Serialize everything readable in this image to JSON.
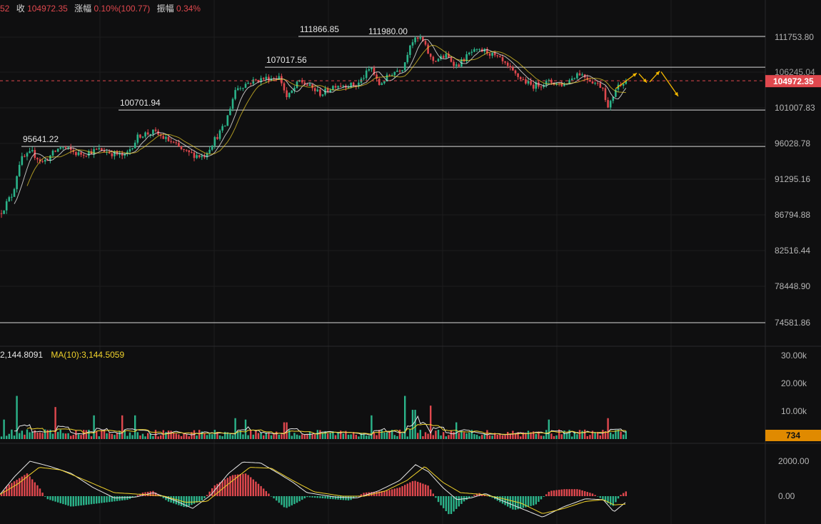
{
  "header": {
    "prefix_fragment": "52",
    "close_label": "收",
    "close_value": "104972.35",
    "change_label": "涨幅",
    "change_value": "0.10%(100.77)",
    "amplitude_label": "振幅",
    "amplitude_value": "0.34%"
  },
  "volume_header": {
    "ma5_fragment": "2,144.8091",
    "ma10_label": "MA(10):3,144.5059"
  },
  "colors": {
    "background": "#0f0f10",
    "up": "#2bb48a",
    "down": "#e0484e",
    "ma_yellow": "#f0d22b",
    "ma_white": "#e6e6e6",
    "arrow": "#f5b800",
    "current_price_badge": "#e0484e",
    "volume_badge": "#e08a00"
  },
  "chart_data": [
    {
      "type": "candlestick",
      "price_axis_ticks": [
        "111753.80",
        "106245.04",
        "101007.83",
        "96028.78",
        "91295.16",
        "86794.88",
        "82516.44",
        "78448.90",
        "74581.86"
      ],
      "price_axis_tick_values": [
        111753.8,
        106245.04,
        101007.83,
        96028.78,
        91295.16,
        86794.88,
        82516.44,
        78448.9,
        74581.86
      ],
      "current_price": 104972.35,
      "current_price_label": "104972.35",
      "horizontal_levels": [
        {
          "value": 111866.85,
          "label": "111866.85"
        },
        {
          "value": 107017.56,
          "label": "107017.56"
        },
        {
          "value": 100701.94,
          "label": "100701.94"
        },
        {
          "value": 95641.22,
          "label": "95641.22"
        },
        {
          "value": 74581.86,
          "label": ""
        }
      ],
      "peak_annotation": {
        "value": 111980.0,
        "label": "111980.00"
      },
      "price_path_anchors": [
        [
          0,
          87000
        ],
        [
          18,
          89500
        ],
        [
          28,
          93800
        ],
        [
          45,
          94800
        ],
        [
          60,
          93500
        ],
        [
          85,
          95600
        ],
        [
          110,
          94600
        ],
        [
          140,
          95200
        ],
        [
          175,
          94300
        ],
        [
          195,
          97200
        ],
        [
          215,
          97600
        ],
        [
          240,
          96200
        ],
        [
          260,
          94800
        ],
        [
          285,
          94300
        ],
        [
          300,
          96500
        ],
        [
          315,
          98500
        ],
        [
          330,
          103800
        ],
        [
          350,
          104800
        ],
        [
          370,
          105300
        ],
        [
          392,
          105500
        ],
        [
          402,
          102400
        ],
        [
          420,
          105000
        ],
        [
          450,
          103000
        ],
        [
          470,
          104400
        ],
        [
          500,
          104300
        ],
        [
          520,
          107000
        ],
        [
          530,
          104300
        ],
        [
          550,
          106200
        ],
        [
          565,
          107000
        ],
        [
          575,
          111000
        ],
        [
          590,
          111600
        ],
        [
          605,
          108000
        ],
        [
          625,
          108800
        ],
        [
          640,
          107200
        ],
        [
          660,
          109400
        ],
        [
          680,
          109600
        ],
        [
          700,
          108200
        ],
        [
          720,
          106000
        ],
        [
          745,
          104200
        ],
        [
          770,
          104800
        ],
        [
          790,
          104400
        ],
        [
          810,
          106200
        ],
        [
          830,
          104900
        ],
        [
          845,
          104000
        ],
        [
          852,
          100700
        ],
        [
          862,
          103800
        ],
        [
          872,
          104900
        ],
        [
          878,
          104972
        ]
      ],
      "forecast_arrows": [
        [
          862,
          103800,
          892,
          106100
        ],
        [
          895,
          106000,
          906,
          104700
        ],
        [
          910,
          104800,
          924,
          106400
        ],
        [
          926,
          106300,
          950,
          102700
        ]
      ]
    },
    {
      "type": "bar",
      "name": "volume",
      "axis_ticks": [
        "30.00k",
        "20.00k",
        "10.00k"
      ],
      "axis_tick_values": [
        30000,
        20000,
        10000
      ],
      "current_label": "734",
      "current_value": 734,
      "spikes": [
        [
          5,
          7000
        ],
        [
          25,
          15500
        ],
        [
          78,
          11500
        ],
        [
          132,
          8500
        ],
        [
          172,
          8500
        ],
        [
          190,
          8500
        ],
        [
          330,
          7500
        ],
        [
          345,
          7000
        ],
        [
          400,
          6000
        ],
        [
          520,
          8500
        ],
        [
          568,
          15500
        ],
        [
          580,
          10500
        ],
        [
          604,
          12000
        ],
        [
          640,
          6000
        ],
        [
          768,
          7000
        ],
        [
          852,
          7500
        ]
      ]
    },
    {
      "type": "line",
      "name": "macd",
      "axis_ticks": [
        "2000.00",
        "0.00"
      ],
      "axis_tick_values": [
        2000,
        0
      ],
      "hist_anchors": [
        [
          0,
          0
        ],
        [
          10,
          600
        ],
        [
          38,
          1300
        ],
        [
          55,
          500
        ],
        [
          65,
          -150
        ],
        [
          100,
          -600
        ],
        [
          140,
          -400
        ],
        [
          180,
          -200
        ],
        [
          200,
          200
        ],
        [
          215,
          300
        ],
        [
          235,
          -300
        ],
        [
          260,
          -650
        ],
        [
          285,
          -200
        ],
        [
          300,
          600
        ],
        [
          325,
          1200
        ],
        [
          345,
          1300
        ],
        [
          365,
          600
        ],
        [
          380,
          0
        ],
        [
          400,
          -700
        ],
        [
          415,
          -400
        ],
        [
          430,
          -50
        ],
        [
          460,
          -150
        ],
        [
          490,
          -250
        ],
        [
          510,
          200
        ],
        [
          540,
          300
        ],
        [
          560,
          500
        ],
        [
          580,
          900
        ],
        [
          600,
          600
        ],
        [
          615,
          -400
        ],
        [
          630,
          -1100
        ],
        [
          650,
          -300
        ],
        [
          670,
          200
        ],
        [
          690,
          -100
        ],
        [
          720,
          -800
        ],
        [
          750,
          -500
        ],
        [
          770,
          300
        ],
        [
          790,
          400
        ],
        [
          810,
          400
        ],
        [
          830,
          150
        ],
        [
          845,
          -200
        ],
        [
          858,
          -600
        ],
        [
          870,
          100
        ],
        [
          878,
          300
        ]
      ],
      "dif_anchors": [
        [
          0,
          100
        ],
        [
          20,
          1100
        ],
        [
          42,
          2000
        ],
        [
          70,
          1700
        ],
        [
          100,
          1300
        ],
        [
          130,
          500
        ],
        [
          160,
          -100
        ],
        [
          190,
          -50
        ],
        [
          215,
          200
        ],
        [
          245,
          -250
        ],
        [
          270,
          -700
        ],
        [
          295,
          50
        ],
        [
          320,
          1300
        ],
        [
          340,
          1950
        ],
        [
          365,
          1900
        ],
        [
          390,
          1300
        ],
        [
          410,
          800
        ],
        [
          430,
          200
        ],
        [
          470,
          -50
        ],
        [
          500,
          -100
        ],
        [
          530,
          300
        ],
        [
          560,
          900
        ],
        [
          582,
          1800
        ],
        [
          600,
          1400
        ],
        [
          620,
          500
        ],
        [
          640,
          -200
        ],
        [
          660,
          -100
        ],
        [
          680,
          150
        ],
        [
          700,
          -200
        ],
        [
          730,
          -700
        ],
        [
          760,
          -1200
        ],
        [
          790,
          -600
        ],
        [
          820,
          -150
        ],
        [
          845,
          -200
        ],
        [
          860,
          -900
        ],
        [
          878,
          -300
        ]
      ],
      "dea_anchors": [
        [
          0,
          100
        ],
        [
          25,
          700
        ],
        [
          55,
          1650
        ],
        [
          85,
          1500
        ],
        [
          120,
          900
        ],
        [
          160,
          200
        ],
        [
          200,
          100
        ],
        [
          230,
          0
        ],
        [
          260,
          -350
        ],
        [
          290,
          -300
        ],
        [
          320,
          700
        ],
        [
          350,
          1650
        ],
        [
          380,
          1600
        ],
        [
          410,
          900
        ],
        [
          440,
          250
        ],
        [
          480,
          0
        ],
        [
          510,
          0
        ],
        [
          540,
          300
        ],
        [
          570,
          900
        ],
        [
          595,
          1700
        ],
        [
          620,
          800
        ],
        [
          645,
          200
        ],
        [
          675,
          100
        ],
        [
          700,
          -100
        ],
        [
          730,
          -400
        ],
        [
          760,
          -1000
        ],
        [
          790,
          -700
        ],
        [
          820,
          -300
        ],
        [
          845,
          -200
        ],
        [
          860,
          -500
        ],
        [
          878,
          -450
        ]
      ]
    }
  ]
}
